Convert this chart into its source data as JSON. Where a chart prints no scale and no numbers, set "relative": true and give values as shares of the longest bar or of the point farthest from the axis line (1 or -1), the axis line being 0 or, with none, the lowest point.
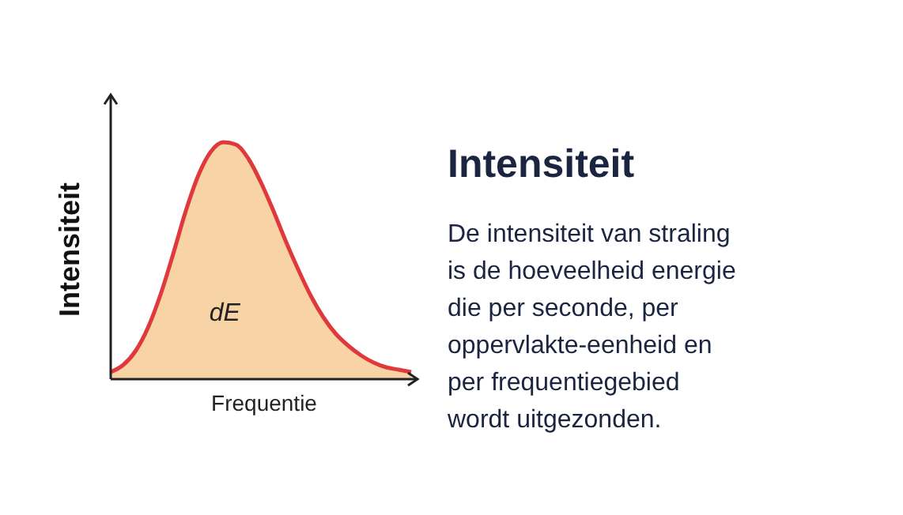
{
  "chart_data": {
    "type": "area",
    "relative": true,
    "title": "Intensiteit",
    "subtitle": "De intensiteit van straling\nis de hoeveelheid energie\ndie per seconde, per\noppervlakte-eenheid en\nper frequentiegebied\nwordt uitgezonden.",
    "xlabel": "Frequentie",
    "ylabel": "Intensiteit",
    "annotations": [
      "dE"
    ],
    "categories": [
      null,
      null,
      null,
      null,
      null,
      null,
      null,
      null,
      null,
      null,
      null,
      null,
      null,
      null,
      null,
      null,
      null,
      null,
      null,
      null,
      null,
      null,
      null,
      null,
      null
    ],
    "series": [
      {
        "color": "#e0393b",
        "values": [
          0.03,
          0.06,
          0.12,
          0.22,
          0.36,
          0.53,
          0.71,
          0.86,
          0.96,
          1.0,
          0.99,
          0.93,
          0.83,
          0.71,
          0.58,
          0.46,
          0.35,
          0.26,
          0.19,
          0.14,
          0.1,
          0.07,
          0.05,
          0.04,
          0.03
        ]
      }
    ]
  }
}
